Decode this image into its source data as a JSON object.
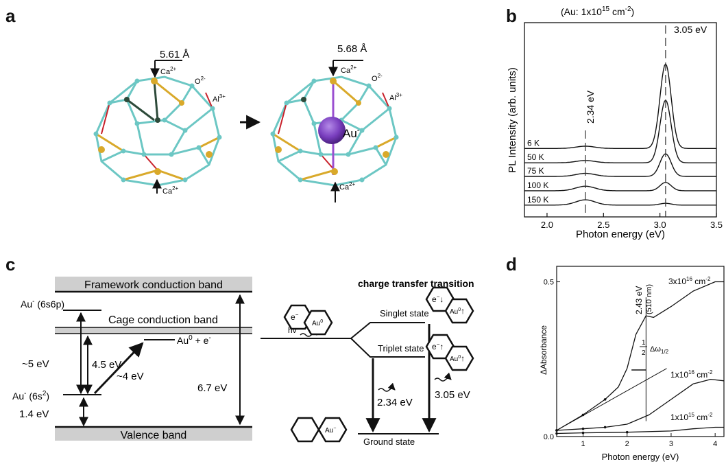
{
  "panels": {
    "a": {
      "letter": "a",
      "left_distance": "5.61 Å",
      "right_distance": "5.68  Å",
      "ca_label": "Ca",
      "ca_charge": "2+",
      "o_label": "O",
      "o_charge": "2-",
      "al_label": "Al",
      "al_charge": "3+",
      "au_label": "Au",
      "au_charge": "-",
      "colors": {
        "framework": "#6cc7c4",
        "gold_bond": "#d9a92a",
        "red_bond": "#c8202a",
        "dark_bond": "#2d4a3a",
        "au_sphere": "#7a3fbf"
      }
    },
    "b": {
      "letter": "b",
      "header": "(Au: 1x10",
      "header_sup": "15",
      "header_tail": " cm",
      "header_unit_sup": "-2",
      "header_close": ")",
      "peak1_label": "3.05 eV",
      "peak2_label": "2.34 eV",
      "xlabel": "Photon energy (eV)",
      "ylabel": "PL Intensity (arb. units)",
      "chart_data": {
        "type": "line",
        "xlim": [
          1.8,
          3.5
        ],
        "xticks": [
          "2.0",
          "2.5",
          "3.0",
          "3.5"
        ],
        "xtick_values": [
          2.0,
          2.5,
          3.0,
          3.5
        ],
        "series": [
          {
            "name": "6 K",
            "baseline": 5.35,
            "peak_305": 5.6,
            "peak_234": 0.15
          },
          {
            "name": "50 K",
            "baseline": 4.4,
            "peak_305": 4.15,
            "peak_234": 0.15
          },
          {
            "name": "75 K",
            "baseline": 3.5,
            "peak_305": 1.5,
            "peak_234": 0.2
          },
          {
            "name": "100 K",
            "baseline": 2.55,
            "peak_305": 0.55,
            "peak_234": 0.3
          },
          {
            "name": "150 K",
            "baseline": 1.6,
            "peak_305": 0.12,
            "peak_234": 0.35
          }
        ]
      }
    },
    "c": {
      "letter": "c",
      "framework_band": "Framework conduction band",
      "cage_band": "Cage conduction band",
      "valence_band": "Valence band",
      "au_6s6p": "Au",
      "au_6s6p_sup": "-",
      "au_6s6p_orb": " (6s6p)",
      "au_6s2": "Au",
      "au_6s2_sup": "-",
      "au_6s2_orb": " (6s",
      "au_6s2_orb_sup": "2",
      "au_6s2_close": ")",
      "au0": "Au",
      "au0_sup": "0",
      "au0_tail": " + e",
      "au0_tail_sup": "-",
      "e_5ev": "~5 eV",
      "e_45ev": "4.5 eV",
      "e_4ev": "~4 eV",
      "e_14ev": "1.4 eV",
      "e_67ev": "6.7 eV",
      "ct_title": "charge transfer transition",
      "singlet": "Singlet state",
      "triplet": "Triplet state",
      "ground": "Ground state",
      "hv": "hν",
      "e_234": "2.34 eV",
      "e_305": "3.05 eV",
      "eminus": "e",
      "au_hex": "Au"
    },
    "d": {
      "letter": "d",
      "ylabel": "ΔAbsorbance",
      "xlabel": "Photon energy (eV)",
      "peak_label": "2.43 eV",
      "peak_nm": "(510 nm)",
      "half": "1",
      "half_den": "2",
      "delta_label": "Δω",
      "delta_sub": "1/2",
      "chart_data": {
        "type": "line",
        "xlim": [
          0.4,
          4.2
        ],
        "ylim": [
          0,
          0.55
        ],
        "xticks": [
          "1",
          "2",
          "3",
          "4"
        ],
        "xtick_values": [
          1,
          2,
          3,
          4
        ],
        "yticks": [
          "0.0",
          "0.5"
        ],
        "ytick_values": [
          0.0,
          0.5
        ],
        "series": [
          {
            "name": "3x10¹⁶ cm⁻²",
            "x": [
              0.4,
              1.0,
              1.5,
              1.8,
              2.0,
              2.2,
              2.43,
              2.6,
              3.0,
              3.5,
              4.0,
              4.2
            ],
            "y": [
              0.02,
              0.07,
              0.12,
              0.16,
              0.22,
              0.33,
              0.39,
              0.385,
              0.42,
              0.47,
              0.5,
              0.5
            ]
          },
          {
            "name": "1x10¹⁶ cm⁻²",
            "x": [
              0.4,
              1.0,
              1.5,
              2.0,
              2.5,
              3.0,
              3.5,
              3.9,
              4.2
            ],
            "y": [
              0.02,
              0.025,
              0.03,
              0.04,
              0.07,
              0.12,
              0.17,
              0.185,
              0.18
            ]
          },
          {
            "name": "1x10¹⁵ cm⁻²",
            "x": [
              0.4,
              1.0,
              2.0,
              3.0,
              3.5,
              4.0,
              4.2
            ],
            "y": [
              0.01,
              0.012,
              0.014,
              0.018,
              0.025,
              0.03,
              0.03
            ]
          }
        ],
        "series_labels": [
          {
            "base": "3x10",
            "sup": "16",
            "unit": " cm",
            "unit_sup": "-2"
          },
          {
            "base": "1x10",
            "sup": "16",
            "unit": " cm",
            "unit_sup": "-2"
          },
          {
            "base": "1x10",
            "sup": "15",
            "unit": " cm",
            "unit_sup": "-2"
          }
        ]
      }
    }
  }
}
